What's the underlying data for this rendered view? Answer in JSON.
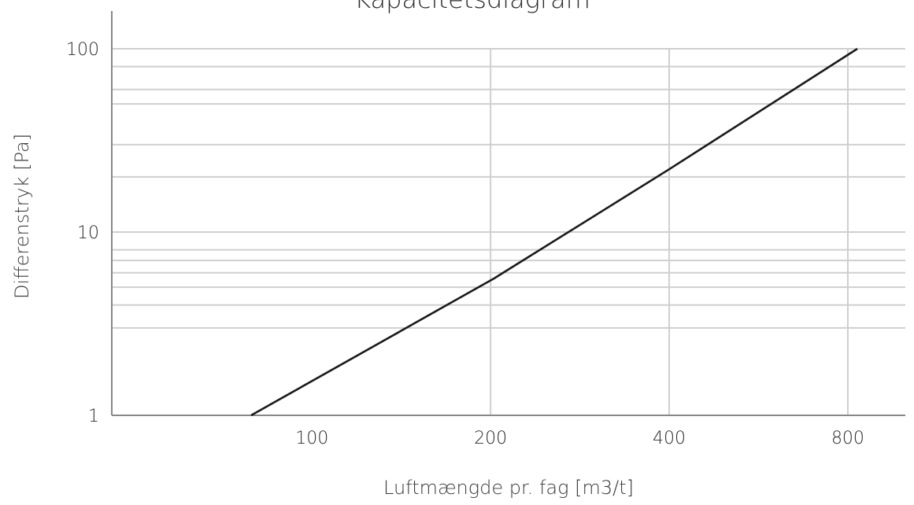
{
  "chart_data": {
    "type": "line",
    "title": "Kapacitetsdiagram",
    "xlabel": "Luftmængde pr. fag [m3/t]",
    "ylabel": "Differenstryk [Pa]",
    "x_scale": "log",
    "y_scale": "log",
    "xlim": [
      46,
      1000
    ],
    "ylim": [
      1,
      100
    ],
    "x_ticks": [
      {
        "value": 100,
        "label": "100"
      },
      {
        "value": 200,
        "label": "200"
      },
      {
        "value": 400,
        "label": "400"
      },
      {
        "value": 800,
        "label": "800"
      }
    ],
    "y_ticks": [
      {
        "value": 1,
        "label": "1"
      },
      {
        "value": 10,
        "label": "10"
      },
      {
        "value": 100,
        "label": "100"
      }
    ],
    "x_gridlines": [
      200,
      400,
      800
    ],
    "y_gridlines": [
      3,
      4,
      5,
      6,
      7,
      8,
      10,
      20,
      30,
      50,
      60,
      80
    ],
    "grid": true,
    "series": [
      {
        "x": [
          79,
          203,
          400,
          830
        ],
        "y": [
          1,
          5.6,
          22,
          100
        ],
        "color": "#1a1a1a"
      }
    ]
  }
}
